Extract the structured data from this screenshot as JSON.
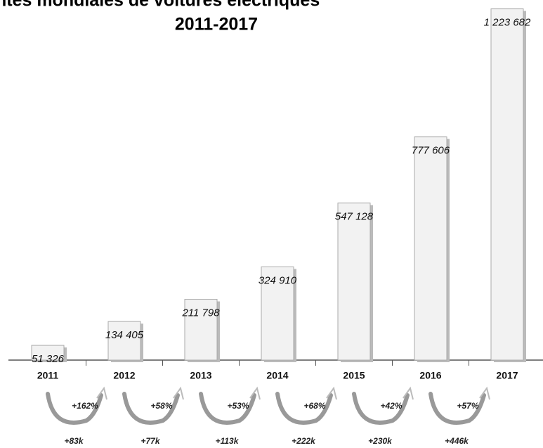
{
  "chart_data": {
    "type": "bar",
    "title": "Ventes mondiales de voitures électriques",
    "subtitle": "2011-2017",
    "categories": [
      "2011",
      "2012",
      "2013",
      "2014",
      "2015",
      "2016",
      "2017"
    ],
    "values": [
      51326,
      134405,
      211798,
      324910,
      547128,
      777606,
      1223682
    ],
    "value_labels": [
      "51 326",
      "134 405",
      "211 798",
      "324 910",
      "547 128",
      "777 606",
      "1 223 682"
    ],
    "growth_labels": [
      "+162%",
      "+58%",
      "+53%",
      "+68%",
      "+42%",
      "+57%"
    ],
    "delta_labels": [
      "+83k",
      "+77k",
      "+113k",
      "+222k",
      "+230k",
      "+446k"
    ],
    "color": "#f2f2f2",
    "ylim": [
      0,
      1230000
    ]
  }
}
